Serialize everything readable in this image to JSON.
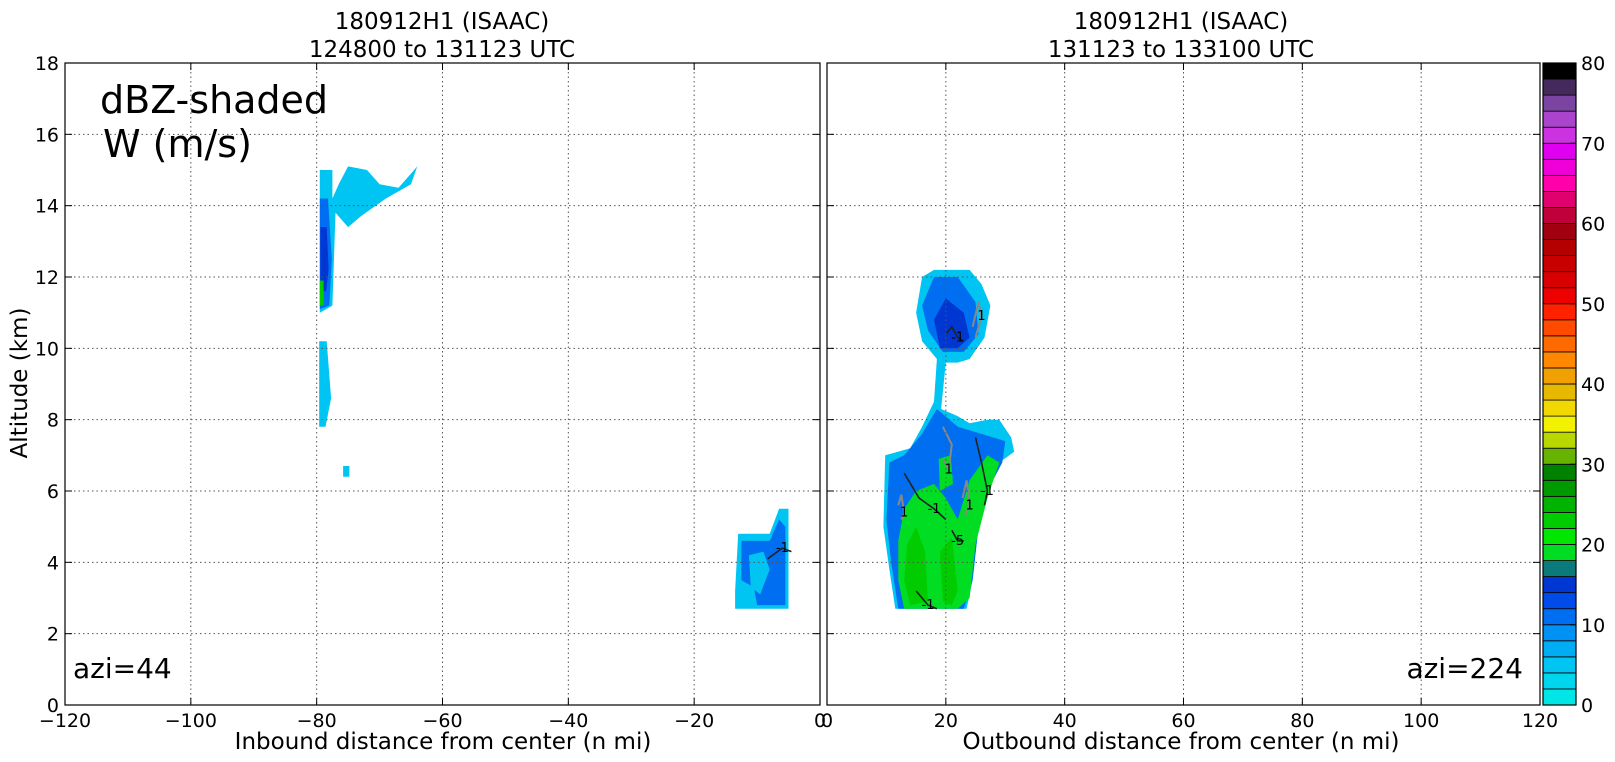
{
  "chart_data": [
    {
      "type": "contour",
      "title": "180912H1 (ISAAC)",
      "subtitle": "124800 to 131123 UTC",
      "xlabel": "Inbound distance from center (n mi)",
      "ylabel": "Altitude (km)",
      "xlim": [
        -120,
        0
      ],
      "ylim": [
        0,
        18
      ],
      "xticks": [
        -120,
        -100,
        -80,
        -60,
        -40,
        -20,
        0
      ],
      "yticks": [
        0,
        2,
        4,
        6,
        8,
        10,
        12,
        14,
        16,
        18
      ],
      "grid": true,
      "annotation_main": "dBZ-shaded",
      "annotation_sub": "W (m/s)",
      "azimuth_label": "azi=44",
      "regions": [
        {
          "dbz": 5,
          "points": [
            [
              -79.5,
              15
            ],
            [
              -77.5,
              15
            ],
            [
              -77.5,
              14.2
            ],
            [
              -76.5,
              14.6
            ],
            [
              -75,
              15.1
            ],
            [
              -72,
              15
            ],
            [
              -70,
              14.6
            ],
            [
              -67,
              14.5
            ],
            [
              -65,
              14.9
            ],
            [
              -64,
              15.1
            ],
            [
              -65,
              14.6
            ],
            [
              -69,
              14.2
            ],
            [
              -73,
              13.7
            ],
            [
              -75,
              13.4
            ],
            [
              -77,
              13.8
            ],
            [
              -77.5,
              11.2
            ],
            [
              -79.5,
              11
            ]
          ]
        },
        {
          "dbz": 10,
          "points": [
            [
              -79.5,
              14.2
            ],
            [
              -78.2,
              14.2
            ],
            [
              -77.6,
              12.5
            ],
            [
              -78,
              11.2
            ],
            [
              -79.5,
              11.1
            ]
          ]
        },
        {
          "dbz": 14,
          "points": [
            [
              -79.4,
              13.4
            ],
            [
              -78.4,
              13.4
            ],
            [
              -78.1,
              12.2
            ],
            [
              -78.5,
              11.6
            ],
            [
              -79.4,
              11.6
            ]
          ]
        },
        {
          "dbz": 22,
          "points": [
            [
              -79.5,
              11.9
            ],
            [
              -78.9,
              11.9
            ],
            [
              -78.9,
              11.2
            ],
            [
              -79.5,
              11.2
            ]
          ]
        },
        {
          "dbz": 5,
          "points": [
            [
              -79.6,
              10.2
            ],
            [
              -78.4,
              10.2
            ],
            [
              -77.7,
              8.6
            ],
            [
              -78.6,
              7.8
            ],
            [
              -79.6,
              7.8
            ]
          ]
        },
        {
          "dbz": 5,
          "points": [
            [
              -75.8,
              6.7
            ],
            [
              -74.8,
              6.7
            ],
            [
              -74.8,
              6.4
            ],
            [
              -75.8,
              6.4
            ]
          ]
        },
        {
          "dbz": 5,
          "points": [
            [
              -13,
              4.8
            ],
            [
              -8,
              4.8
            ],
            [
              -6.5,
              5.5
            ],
            [
              -5,
              5.5
            ],
            [
              -5,
              2.7
            ],
            [
              -13.5,
              2.7
            ],
            [
              -13.5,
              3.2
            ]
          ]
        },
        {
          "dbz": 10,
          "points": [
            [
              -12.5,
              4.6
            ],
            [
              -8,
              4.6
            ],
            [
              -6.5,
              5.2
            ],
            [
              -5.5,
              5
            ],
            [
              -5.5,
              2.8
            ],
            [
              -10,
              2.8
            ],
            [
              -10.5,
              3.3
            ],
            [
              -12.5,
              3.5
            ]
          ]
        },
        {
          "dbz": 5,
          "points": [
            [
              -11.3,
              4.2
            ],
            [
              -9,
              4.3
            ],
            [
              -8,
              3.8
            ],
            [
              -9.5,
              3.1
            ],
            [
              -11,
              3.3
            ]
          ]
        }
      ]
    },
    {
      "type": "contour",
      "title": "180912H1 (ISAAC)",
      "subtitle": "131123 to 133100 UTC",
      "xlabel": "Outbound distance from center (n mi)",
      "ylabel": "",
      "xlim": [
        0,
        120
      ],
      "ylim": [
        0,
        18
      ],
      "xticks": [
        0,
        20,
        40,
        60,
        80,
        100,
        120
      ],
      "yticks": [
        0,
        2,
        4,
        6,
        8,
        10,
        12,
        14,
        16,
        18
      ],
      "grid": true,
      "azimuth_label": "azi=224",
      "regions": [
        {
          "dbz": 5,
          "points": [
            [
              15,
              11
            ],
            [
              16,
              12
            ],
            [
              18,
              12.2
            ],
            [
              24,
              12.2
            ],
            [
              26,
              11.8
            ],
            [
              27.5,
              11.2
            ],
            [
              26.5,
              10.3
            ],
            [
              24,
              9.7
            ],
            [
              22,
              9.6
            ],
            [
              20,
              9.6
            ],
            [
              19.2,
              8.3
            ],
            [
              22,
              8.1
            ],
            [
              24,
              7.9
            ],
            [
              27,
              8
            ],
            [
              29,
              8
            ],
            [
              31,
              7.5
            ],
            [
              31.5,
              7.1
            ],
            [
              29,
              6.8
            ],
            [
              27,
              6
            ],
            [
              25.5,
              5
            ],
            [
              24.5,
              3.5
            ],
            [
              23.5,
              2.7
            ],
            [
              11.5,
              2.7
            ],
            [
              10.5,
              3.8
            ],
            [
              9.5,
              5
            ],
            [
              9.8,
              7
            ],
            [
              14,
              7.2
            ],
            [
              16,
              7.8
            ],
            [
              18,
              8.5
            ],
            [
              18.5,
              9.7
            ],
            [
              16,
              10.2
            ]
          ]
        },
        {
          "dbz": 10,
          "points": [
            [
              16,
              11.2
            ],
            [
              18,
              12
            ],
            [
              22,
              12
            ],
            [
              25,
              11.3
            ],
            [
              25.5,
              10.4
            ],
            [
              23,
              9.9
            ],
            [
              19.5,
              9.9
            ],
            [
              17,
              10.5
            ]
          ]
        },
        {
          "dbz": 10,
          "points": [
            [
              10.5,
              6.8
            ],
            [
              13,
              7
            ],
            [
              16,
              7.6
            ],
            [
              18.5,
              8.3
            ],
            [
              22,
              7.8
            ],
            [
              26,
              7.6
            ],
            [
              30,
              7.4
            ],
            [
              29.5,
              6.8
            ],
            [
              27,
              6
            ],
            [
              25.5,
              5
            ],
            [
              24.5,
              3.5
            ],
            [
              23,
              2.7
            ],
            [
              12,
              2.7
            ],
            [
              10.8,
              4
            ],
            [
              10,
              5.2
            ]
          ]
        },
        {
          "dbz": 14,
          "points": [
            [
              18,
              10.8
            ],
            [
              20,
              11.4
            ],
            [
              23,
              11
            ],
            [
              24,
              10.3
            ],
            [
              22,
              10
            ],
            [
              19,
              10
            ]
          ]
        },
        {
          "dbz": 19,
          "points": [
            [
              13,
              5.5
            ],
            [
              15,
              6
            ],
            [
              18,
              6.2
            ],
            [
              20,
              5.8
            ],
            [
              22,
              5.2
            ],
            [
              24,
              6.3
            ],
            [
              27,
              7
            ],
            [
              29,
              6.8
            ],
            [
              27,
              5.8
            ],
            [
              25,
              4.5
            ],
            [
              24,
              3
            ],
            [
              22,
              2.7
            ],
            [
              13,
              2.7
            ],
            [
              12,
              3.5
            ],
            [
              12,
              4.6
            ]
          ]
        },
        {
          "dbz": 22,
          "points": [
            [
              13.5,
              4.5
            ],
            [
              15,
              5
            ],
            [
              16.5,
              4.3
            ],
            [
              17,
              2.9
            ],
            [
              14,
              2.8
            ],
            [
              13,
              3.5
            ]
          ]
        },
        {
          "dbz": 22,
          "points": [
            [
              19,
              4.3
            ],
            [
              21,
              4.7
            ],
            [
              22,
              3.2
            ],
            [
              21,
              2.8
            ],
            [
              19.5,
              2.9
            ]
          ]
        },
        {
          "dbz": 19,
          "points": [
            [
              18.8,
              6.9
            ],
            [
              20.8,
              7
            ],
            [
              21.2,
              6.2
            ],
            [
              19,
              6
            ]
          ]
        }
      ],
      "w_contours": [
        {
          "value": "-1",
          "points": [
            [
              20,
              10.4
            ],
            [
              21,
              10.6
            ],
            [
              22,
              10.3
            ],
            [
              23,
              10.2
            ]
          ]
        },
        {
          "value": "-1",
          "points": [
            [
              13,
              6.5
            ],
            [
              15.5,
              5.8
            ],
            [
              18,
              5.5
            ],
            [
              20,
              5.2
            ]
          ]
        },
        {
          "value": "-1",
          "points": [
            [
              25,
              7.5
            ],
            [
              26,
              6.8
            ],
            [
              27,
              6
            ],
            [
              26.5,
              5.6
            ]
          ]
        },
        {
          "value": "-1",
          "points": [
            [
              15,
              3.2
            ],
            [
              17,
              2.8
            ],
            [
              18.5,
              2.7
            ]
          ]
        },
        {
          "value": "-1",
          "points": [
            [
              -10,
              4.1
            ],
            [
              -7.5,
              4.4
            ],
            [
              -6,
              4.3
            ]
          ]
        },
        {
          "value": "-5",
          "points": [
            [
              21,
              4.9
            ],
            [
              22,
              4.6
            ],
            [
              23,
              4.6
            ]
          ]
        },
        {
          "value": "1",
          "points": [
            [
              19.5,
              7.8
            ],
            [
              21,
              7.3
            ],
            [
              20.5,
              6.6
            ],
            [
              19.5,
              6.9
            ]
          ]
        },
        {
          "value": "1",
          "points": [
            [
              24.5,
              10.6
            ],
            [
              25.5,
              11.3
            ],
            [
              26,
              10.9
            ],
            [
              25,
              10.3
            ]
          ]
        },
        {
          "value": "1",
          "points": [
            [
              12,
              5.6
            ],
            [
              12.5,
              5.9
            ],
            [
              13,
              5.4
            ],
            [
              12.5,
              5.2
            ]
          ]
        },
        {
          "value": "1",
          "points": [
            [
              22.8,
              5.8
            ],
            [
              23.5,
              6.3
            ],
            [
              24,
              5.6
            ],
            [
              23.2,
              5.3
            ]
          ]
        }
      ]
    }
  ],
  "colorbar": {
    "ticks": [
      0,
      10,
      20,
      30,
      40,
      50,
      60,
      70,
      80
    ],
    "min": 0,
    "max": 80,
    "levels": [
      {
        "lo": 0,
        "hi": 2,
        "color": "#00e6e6"
      },
      {
        "lo": 2,
        "hi": 4,
        "color": "#00d5ee"
      },
      {
        "lo": 4,
        "hi": 6,
        "color": "#00c4f2"
      },
      {
        "lo": 6,
        "hi": 8,
        "color": "#00adf4"
      },
      {
        "lo": 8,
        "hi": 10,
        "color": "#0091f5"
      },
      {
        "lo": 10,
        "hi": 12,
        "color": "#006ef0"
      },
      {
        "lo": 12,
        "hi": 14,
        "color": "#004ce8"
      },
      {
        "lo": 14,
        "hi": 16,
        "color": "#0036d2"
      },
      {
        "lo": 16,
        "hi": 18,
        "color": "#0a7a7a"
      },
      {
        "lo": 18,
        "hi": 20,
        "color": "#00dd22"
      },
      {
        "lo": 20,
        "hi": 22,
        "color": "#00e600"
      },
      {
        "lo": 22,
        "hi": 24,
        "color": "#00cc00"
      },
      {
        "lo": 24,
        "hi": 26,
        "color": "#00b300"
      },
      {
        "lo": 26,
        "hi": 28,
        "color": "#009a00"
      },
      {
        "lo": 28,
        "hi": 30,
        "color": "#008200"
      },
      {
        "lo": 30,
        "hi": 32,
        "color": "#66b300"
      },
      {
        "lo": 32,
        "hi": 34,
        "color": "#b8d600"
      },
      {
        "lo": 34,
        "hi": 36,
        "color": "#f2f200"
      },
      {
        "lo": 36,
        "hi": 38,
        "color": "#f0d800"
      },
      {
        "lo": 38,
        "hi": 40,
        "color": "#e6b800"
      },
      {
        "lo": 40,
        "hi": 42,
        "color": "#f0a000"
      },
      {
        "lo": 42,
        "hi": 44,
        "color": "#ff8800"
      },
      {
        "lo": 44,
        "hi": 46,
        "color": "#ff6a00"
      },
      {
        "lo": 46,
        "hi": 48,
        "color": "#ff4a00"
      },
      {
        "lo": 48,
        "hi": 50,
        "color": "#ff2200"
      },
      {
        "lo": 50,
        "hi": 52,
        "color": "#ee0000"
      },
      {
        "lo": 52,
        "hi": 54,
        "color": "#d80000"
      },
      {
        "lo": 54,
        "hi": 56,
        "color": "#c80000"
      },
      {
        "lo": 56,
        "hi": 58,
        "color": "#b40000"
      },
      {
        "lo": 58,
        "hi": 60,
        "color": "#a00010"
      },
      {
        "lo": 60,
        "hi": 62,
        "color": "#c0003a"
      },
      {
        "lo": 62,
        "hi": 64,
        "color": "#e0006e"
      },
      {
        "lo": 64,
        "hi": 66,
        "color": "#ff00aa"
      },
      {
        "lo": 66,
        "hi": 68,
        "color": "#f000d8"
      },
      {
        "lo": 68,
        "hi": 70,
        "color": "#e000f0"
      },
      {
        "lo": 70,
        "hi": 72,
        "color": "#cc33e0"
      },
      {
        "lo": 72,
        "hi": 74,
        "color": "#aa44cc"
      },
      {
        "lo": 74,
        "hi": 76,
        "color": "#7a44a0"
      },
      {
        "lo": 76,
        "hi": 78,
        "color": "#442a5c"
      },
      {
        "lo": 78,
        "hi": 80,
        "color": "#000000"
      }
    ]
  }
}
